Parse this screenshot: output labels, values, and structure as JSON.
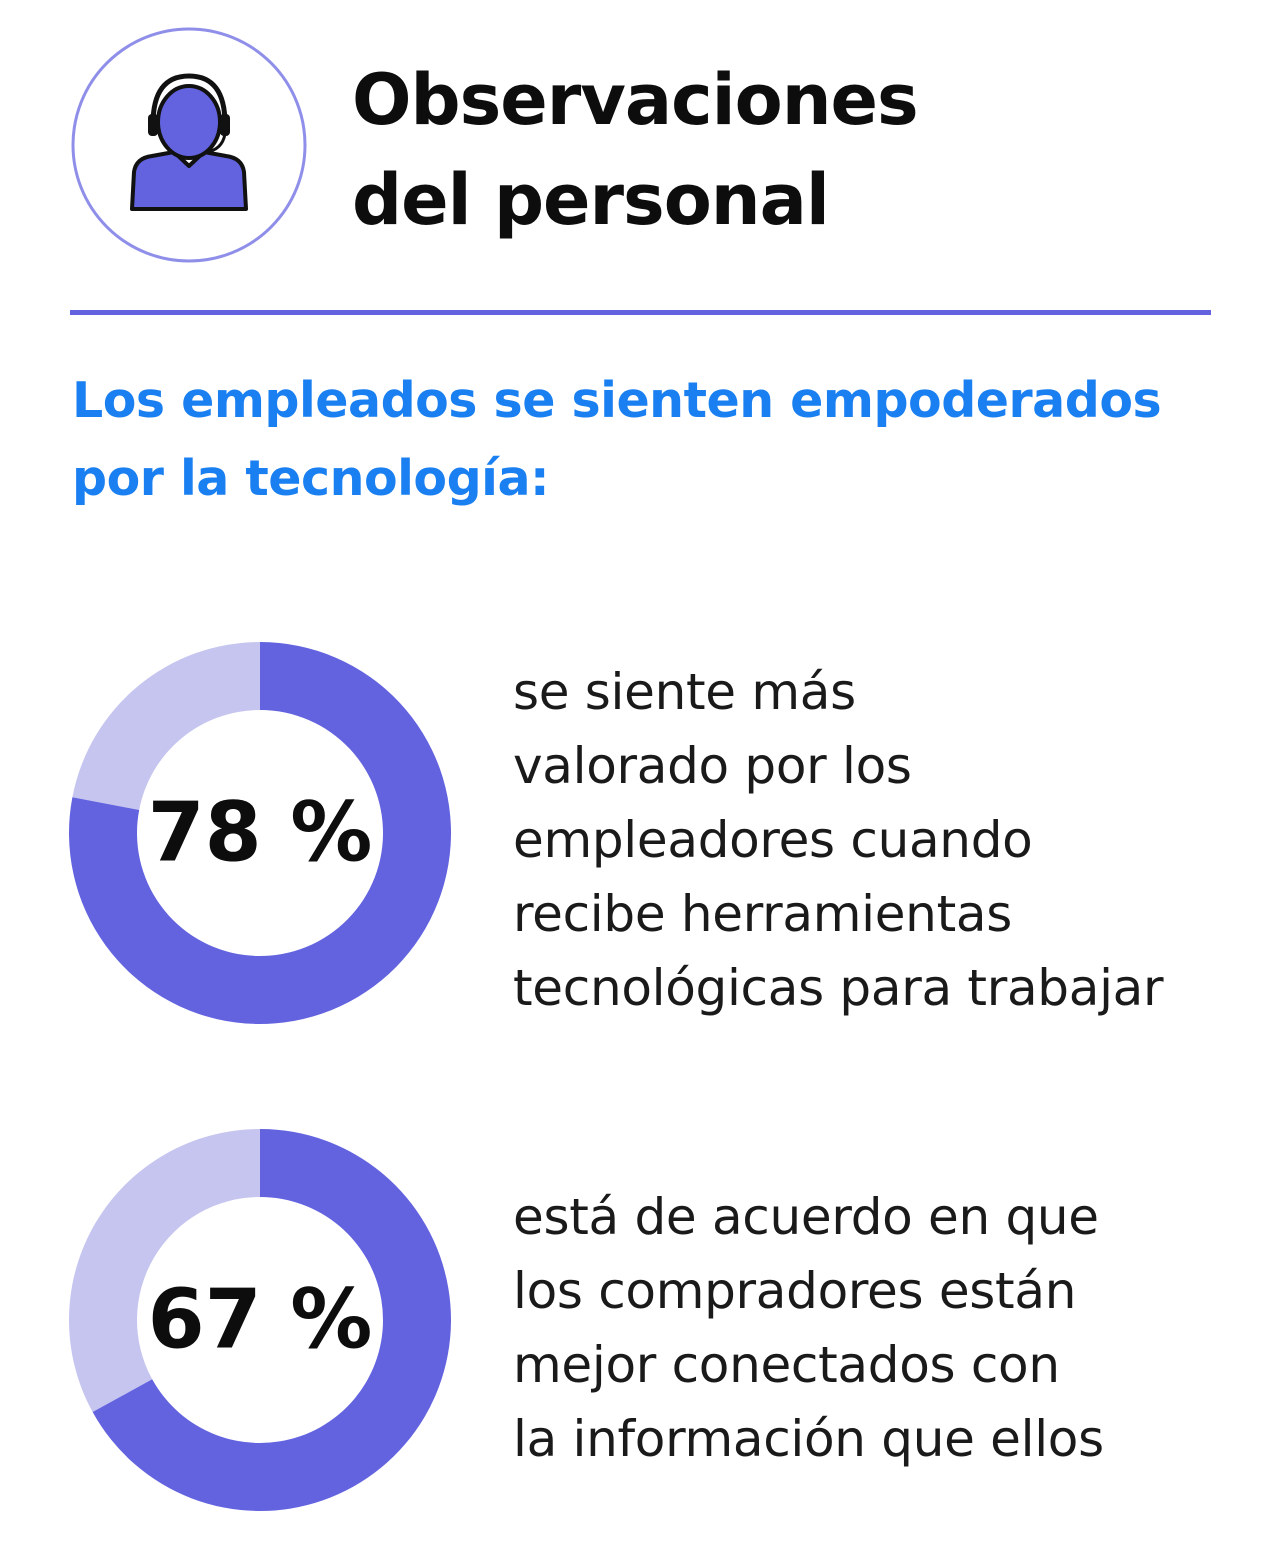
{
  "header": {
    "title_lines": [
      "Observaciones",
      "del personal"
    ],
    "icon": "headset-agent-icon"
  },
  "subtitle_lines": [
    "Los empleados se sienten empoderados",
    "por la tecnología:"
  ],
  "colors": {
    "accent": "#6363e0",
    "accent_light": "#c5c5f0",
    "subtitle": "#1a7ff0",
    "text": "#1a1a1a"
  },
  "chart_data": [
    {
      "type": "pie",
      "variant": "donut",
      "values": [
        78,
        22
      ],
      "label": "78 %",
      "description_lines": [
        "se siente más",
        "valorado por los",
        "empleadores cuando",
        "recibe herramientas",
        "tecnológicas para trabajar"
      ]
    },
    {
      "type": "pie",
      "variant": "donut",
      "values": [
        67,
        33
      ],
      "label": "67 %",
      "description_lines": [
        "está de acuerdo en que",
        "los compradores están",
        "mejor conectados con",
        "la información que ellos"
      ]
    }
  ]
}
